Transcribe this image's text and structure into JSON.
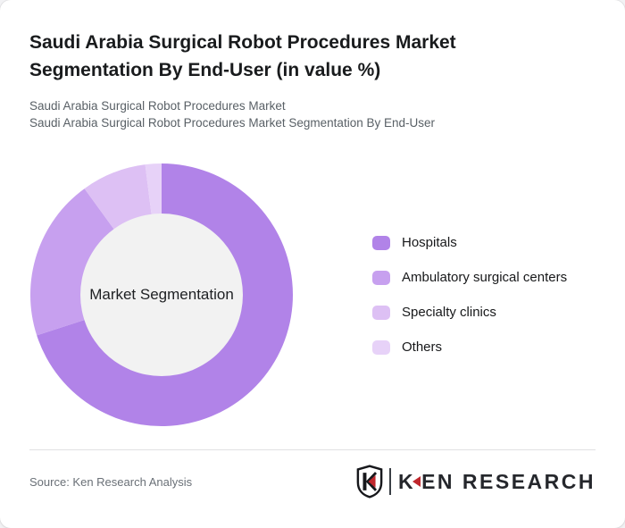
{
  "page": {
    "background": "#f2f2f4",
    "card_background": "#ffffff"
  },
  "header": {
    "title": "Saudi Arabia Surgical Robot Procedures Market Segmentation By End-User (in value %)",
    "subtitle_line1": "Saudi Arabia Surgical Robot Procedures Market",
    "subtitle_line2": "Saudi Arabia Surgical Robot Procedures Market Segmentation By End-User"
  },
  "chart_data": {
    "type": "pie",
    "donut": true,
    "title": "Saudi Arabia Surgical Robot Procedures Market Segmentation By End-User (in value %)",
    "center_label": "Market Segmentation",
    "series": [
      {
        "name": "Hospitals",
        "value": 70,
        "color": "#b183e8"
      },
      {
        "name": "Ambulatory surgical centers",
        "value": 20,
        "color": "#c7a0ef"
      },
      {
        "name": "Specialty clinics",
        "value": 8,
        "color": "#ddc0f4"
      },
      {
        "name": "Others",
        "value": 2,
        "color": "#e7d2f8"
      }
    ],
    "start_angle_deg": 0,
    "direction": "clockwise",
    "inner_radius_ratio": 0.62,
    "hole_color": "#f2f2f2",
    "legend_position": "right",
    "value_labels_shown": false
  },
  "footer": {
    "source": "Source: Ken Research Analysis",
    "logo": {
      "shield_letter": "K",
      "wordmark_k": "K",
      "wordmark_en": "EN",
      "wordmark_research": " RESEARCH",
      "accent_color": "#c0272d",
      "text_color": "#25272c"
    }
  }
}
